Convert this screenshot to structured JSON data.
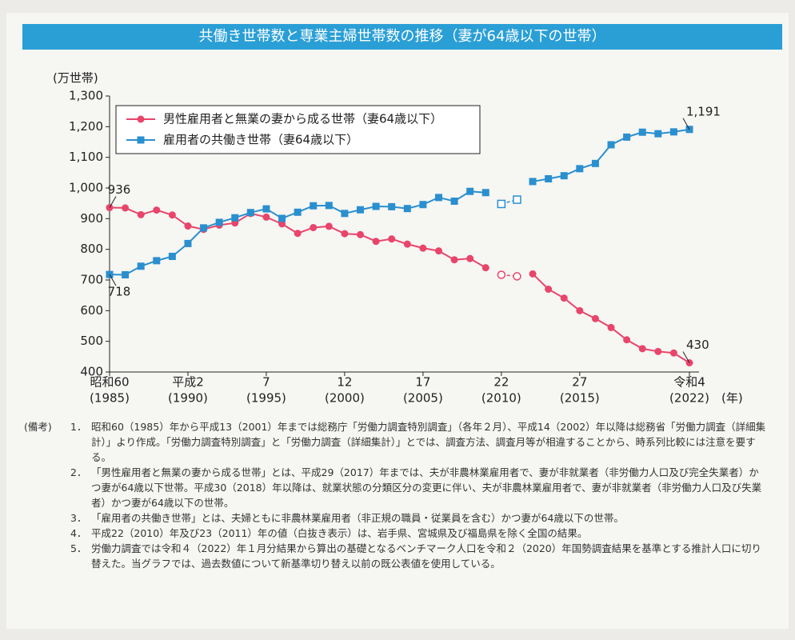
{
  "chart_data": {
    "type": "line",
    "title": "共働き世帯数と専業主婦世帯数の推移（妻が64歳以下の世帯）",
    "y_unit": "(万世帯)",
    "x_unit": "(年)",
    "xlim": [
      1985,
      2022
    ],
    "xticks": [
      {
        "value": 1985,
        "era": "昭和60",
        "label": "(1985)"
      },
      {
        "value": 1990,
        "era": "平成2",
        "label": "(1990)"
      },
      {
        "value": 1995,
        "era": "7",
        "label": "(1995)"
      },
      {
        "value": 2000,
        "era": "12",
        "label": "(2000)"
      },
      {
        "value": 2005,
        "era": "17",
        "label": "(2005)"
      },
      {
        "value": 2010,
        "era": "22",
        "label": "(2010)"
      },
      {
        "value": 2015,
        "era": "27",
        "label": "(2015)"
      },
      {
        "value": 2022,
        "era": "令和4",
        "label": "(2022)"
      }
    ],
    "ylim": [
      400,
      1300
    ],
    "yticks": [
      400,
      500,
      600,
      700,
      800,
      900,
      {
        "value": 1000,
        "label": "1,000"
      },
      {
        "value": 1100,
        "label": "1,100"
      },
      {
        "value": 1200,
        "label": "1,200"
      },
      {
        "value": 1300,
        "label": "1,300"
      }
    ],
    "x": [
      1985,
      1986,
      1987,
      1988,
      1989,
      1990,
      1991,
      1992,
      1993,
      1994,
      1995,
      1996,
      1997,
      1998,
      1999,
      2000,
      2001,
      2002,
      2003,
      2004,
      2005,
      2006,
      2007,
      2008,
      2009,
      2010,
      2011,
      2012,
      2013,
      2014,
      2015,
      2016,
      2017,
      2018,
      2019,
      2020,
      2021,
      2022
    ],
    "series": [
      {
        "name": "男性雇用者と無業の妻から成る世帯（妻64歳以下）",
        "color": "#e8456b",
        "marker": "circle",
        "values": [
          936,
          935,
          913,
          928,
          912,
          876,
          865,
          879,
          886,
          917,
          905,
          883,
          852,
          871,
          875,
          851,
          848,
          826,
          834,
          817,
          804,
          795,
          766,
          770,
          740,
          null,
          null,
          720,
          670,
          641,
          600,
          574,
          545,
          505,
          476,
          467,
          462,
          430
        ],
        "values_hollow": [
          null,
          null,
          null,
          null,
          null,
          null,
          null,
          null,
          null,
          null,
          null,
          null,
          null,
          null,
          null,
          null,
          null,
          null,
          null,
          null,
          null,
          null,
          null,
          null,
          null,
          717,
          712,
          null,
          null,
          null,
          null,
          null,
          null,
          null,
          null,
          null,
          null,
          null
        ],
        "value_labels": [
          "936",
          null,
          null,
          null,
          null,
          null,
          null,
          null,
          null,
          null,
          null,
          null,
          null,
          null,
          null,
          null,
          null,
          null,
          null,
          null,
          null,
          null,
          null,
          null,
          null,
          null,
          null,
          null,
          null,
          null,
          null,
          null,
          null,
          null,
          null,
          null,
          null,
          "430"
        ]
      },
      {
        "name": "雇用者の共働き世帯（妻64歳以下）",
        "color": "#2a8fcf",
        "marker": "square",
        "values": [
          718,
          717,
          745,
          763,
          777,
          819,
          870,
          888,
          903,
          920,
          932,
          901,
          921,
          942,
          943,
          917,
          929,
          940,
          939,
          933,
          946,
          969,
          957,
          989,
          985,
          null,
          null,
          1021,
          1030,
          1040,
          1063,
          1080,
          1141,
          1166,
          1182,
          1177,
          1183,
          1191
        ],
        "values_hollow": [
          null,
          null,
          null,
          null,
          null,
          null,
          null,
          null,
          null,
          null,
          null,
          null,
          null,
          null,
          null,
          null,
          null,
          null,
          null,
          null,
          null,
          null,
          null,
          null,
          null,
          948,
          962,
          null,
          null,
          null,
          null,
          null,
          null,
          null,
          null,
          null,
          null,
          null
        ],
        "value_labels": [
          "718",
          null,
          null,
          null,
          null,
          null,
          null,
          null,
          null,
          null,
          null,
          null,
          null,
          null,
          null,
          null,
          null,
          null,
          null,
          null,
          null,
          null,
          null,
          null,
          null,
          null,
          null,
          null,
          null,
          null,
          null,
          null,
          null,
          null,
          null,
          null,
          null,
          "1,191"
        ]
      }
    ]
  },
  "notes": {
    "prefix": "(備考)",
    "items": [
      {
        "num": "1．",
        "text": "昭和60（1985）年から平成13（2001）年までは総務庁「労働力調査特別調査」（各年２月）、平成14（2002）年以降は総務省「労働力調査（詳細集計）」より作成。「労働力調査特別調査」と「労働力調査（詳細集計）」とでは、調査方法、調査月等が相違することから、時系列比較には注意を要する。"
      },
      {
        "num": "2．",
        "text": "「男性雇用者と無業の妻から成る世帯」とは、平成29（2017）年までは、夫が非農林業雇用者で、妻が非就業者（非労働力人口及び完全失業者）かつ妻が64歳以下世帯。平成30（2018）年以降は、就業状態の分類区分の変更に伴い、夫が非農林業雇用者で、妻が非就業者（非労働力人口及び失業者）かつ妻が64歳以下の世帯。"
      },
      {
        "num": "3．",
        "text": "「雇用者の共働き世帯」とは、夫婦ともに非農林業雇用者（非正規の職員・従業員を含む）かつ妻が64歳以下の世帯。"
      },
      {
        "num": "4．",
        "text": "平成22（2010）年及び23（2011）年の値（白抜き表示）は、岩手県、宮城県及び福島県を除く全国の結果。"
      },
      {
        "num": "5．",
        "text": "労働力調査では令和４（2022）年１月分結果から算出の基礎となるベンチマーク人口を令和２（2020）年国勢調査結果を基準とする推計人口に切り替えた。当グラフでは、過去数値について新基準切り替え以前の既公表値を使用している。"
      }
    ]
  }
}
